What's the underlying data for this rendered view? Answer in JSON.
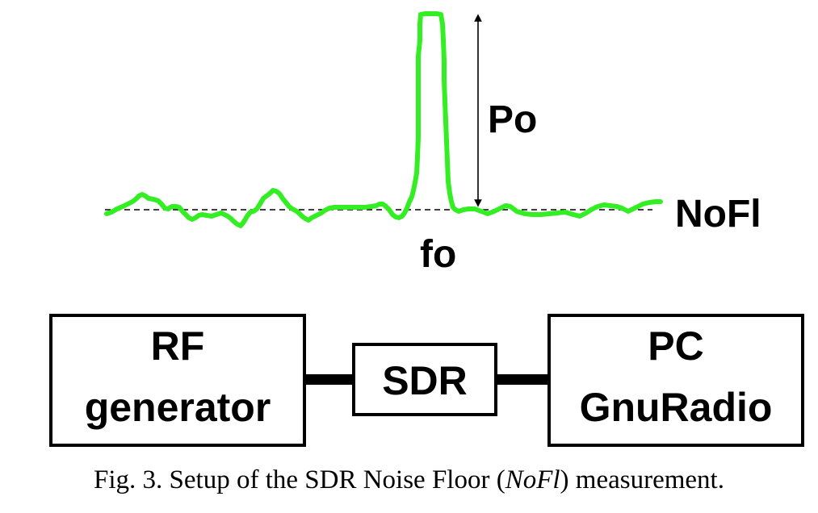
{
  "spectrum": {
    "peak_label": "Po",
    "noise_floor_label": "NoFl",
    "frequency_label": "fo",
    "trace_color": "#33ee22"
  },
  "blocks": {
    "rf_generator": {
      "line1": "RF",
      "line2": "generator"
    },
    "sdr": {
      "label": "SDR"
    },
    "pc": {
      "line1": "PC",
      "line2": "GnuRadio"
    }
  },
  "caption": {
    "prefix": "Fig. 3. Setup of the SDR Noise Floor (",
    "math": "NoFl",
    "suffix": ") measurement."
  }
}
